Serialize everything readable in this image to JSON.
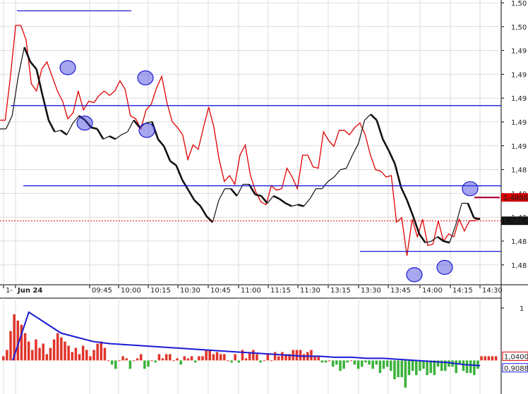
{
  "chart_data": [
    {
      "type": "line",
      "panel": "price",
      "x_ticks": [
        "1-",
        "Jun 24",
        "09:45",
        "10:00",
        "10:15",
        "10:30",
        "10:45",
        "11:00",
        "11:15",
        "11:30",
        "13:15",
        "13:30",
        "13:45",
        "14:00",
        "14:15",
        "14:30"
      ],
      "y_ticks": [
        "1,50",
        "1,50",
        "1,49",
        "1,49",
        "1,49",
        "1,49",
        "1,49",
        "1,48",
        "1,48",
        "1,48",
        "1,48",
        "1,48"
      ],
      "grid": true,
      "price_badges": [
        {
          "text": "1,4866",
          "color": "#d40000"
        },
        {
          "text": "1,486 5",
          "color": "#111111"
        }
      ],
      "series": [
        {
          "color": "#e00000",
          "values": [
            1.4935,
            1.4935,
            1.4965,
            1.5,
            1.5,
            1.499,
            1.496,
            1.4955,
            1.497,
            1.4975,
            1.4965,
            1.4955,
            1.4948,
            1.4936,
            1.494,
            1.4955,
            1.4942,
            1.4948,
            1.4947,
            1.4952,
            1.4955,
            1.4952,
            1.4955,
            1.4962,
            1.4956,
            1.4938,
            1.4936,
            1.4929,
            1.4942,
            1.4946,
            1.4957,
            1.4965,
            1.4947,
            1.4934,
            1.493,
            1.4925,
            1.4908,
            1.4918,
            1.4915,
            1.493,
            1.4944,
            1.493,
            1.4908,
            1.4893,
            1.4897,
            1.4891,
            1.4911,
            1.4918,
            1.4897,
            1.4886,
            1.4879,
            1.4877,
            1.489,
            1.4887,
            1.4888,
            1.4902,
            1.4896,
            1.4888,
            1.4911,
            1.4911,
            1.4903,
            1.4902,
            1.4927,
            1.4921,
            1.4917,
            1.4928,
            1.4928,
            1.4925,
            1.493,
            1.4933,
            1.4925,
            1.4911,
            1.4901,
            1.49,
            1.4896,
            1.4897,
            1.4865,
            1.4868,
            1.4842,
            1.4867,
            1.4855,
            1.4867,
            1.4849,
            1.485,
            1.4866,
            1.4852,
            1.4857,
            1.4855,
            1.4867,
            1.4859,
            1.4866,
            1.4866,
            1.4868
          ]
        },
        {
          "color": "#111111",
          "values": [
            1.4929,
            1.4929,
            1.4938,
            1.4965,
            1.4985,
            1.4975,
            1.497,
            1.4952,
            1.4935,
            1.4927,
            1.4928,
            1.4925,
            1.4933,
            1.4938,
            1.4935,
            1.493,
            1.4929,
            1.4922,
            1.4924,
            1.4922,
            1.4925,
            1.4927,
            1.4935,
            1.493,
            1.4933,
            1.4934,
            1.4922,
            1.4917,
            1.4907,
            1.4904,
            1.4894,
            1.4887,
            1.488,
            1.4876,
            1.4869,
            1.4865,
            1.488,
            1.4888,
            1.4888,
            1.4883,
            1.4891,
            1.4891,
            1.4884,
            1.4883,
            1.4878,
            1.4883,
            1.4881,
            1.4878,
            1.4876,
            1.4877,
            1.4876,
            1.4881,
            1.4888,
            1.4888,
            1.4893,
            1.4896,
            1.4901,
            1.4902,
            1.4911,
            1.4919,
            1.4935,
            1.4939,
            1.4935,
            1.4922,
            1.4914,
            1.4905,
            1.4889,
            1.488,
            1.4869,
            1.4857,
            1.4851,
            1.4852,
            1.4855,
            1.4852,
            1.4851,
            1.4863,
            1.4878,
            1.4878,
            1.4868,
            1.4867
          ]
        }
      ],
      "horizontal_lines": [
        1.501,
        1.4945,
        1.489,
        1.4845,
        1.4866
      ],
      "circled_points": [
        1.4971,
        1.4964,
        1.4933,
        1.4928,
        1.4888,
        1.4829,
        1.4834
      ]
    },
    {
      "type": "bar",
      "panel": "histogram",
      "y_ticks": [
        "1"
      ],
      "value_badges": [
        {
          "text": "1,0400",
          "color": "#e00000"
        },
        {
          "text": "0,9088",
          "color": "#1a1aff"
        }
      ],
      "baseline": 1.02,
      "ylim": [
        0.86,
        1.31
      ],
      "values": [
        1.04,
        1.07,
        1.16,
        1.24,
        1.21,
        1.19,
        1.15,
        1.11,
        1.07,
        1.12,
        1.08,
        1.1,
        1.05,
        1.08,
        1.12,
        1.15,
        1.13,
        1.11,
        1.09,
        1.06,
        1.08,
        1.05,
        1.09,
        1.07,
        1.04,
        1.07,
        1.1,
        1.11,
        1.08,
        1.02,
        1.0,
        0.98,
        1.02,
        1.04,
        1.03,
        0.98,
        1.02,
        1.03,
        1.05,
        0.98,
        0.99,
        1.02,
        1.01,
        1.05,
        1.03,
        1.05,
        1.05,
        1.02,
        1.03,
        1.0,
        1.04,
        1.03,
        1.04,
        1.01,
        1.04,
        1.04,
        1.07,
        1.07,
        1.05,
        1.06,
        1.05,
        1.05,
        1.02,
        1.01,
        1.05,
        1.01,
        1.07,
        1.03,
        1.06,
        1.07,
        1.05,
        1.01,
        1.02,
        1.05,
        1.02,
        1.06,
        1.04,
        1.06,
        1.05,
        1.05,
        1.07,
        1.07,
        1.07,
        1.05,
        1.06,
        1.07,
        1.04,
        1.04,
        1.01,
        1.01,
        1.02,
        0.99,
        1.0,
        0.97,
        0.98,
        1.01,
        1.02,
        1.0,
        0.98,
        0.99,
        1.01,
        1.0,
        0.98,
        1.0,
        0.96,
        0.98,
        0.99,
        0.97,
        0.93,
        0.94,
        0.94,
        0.89,
        0.95,
        0.97,
        0.95,
        0.97,
        0.98,
        0.95,
        0.96,
        0.95,
        0.99,
        0.97,
        0.97,
        0.99,
        0.99,
        0.96,
        1.0,
        0.97,
        0.96,
        0.96,
        0.95,
        0.98,
        1.04,
        1.04,
        1.04,
        1.04,
        1.04
      ],
      "signal": [
        1.02,
        1.25,
        1.2,
        1.15,
        1.13,
        1.11,
        1.1,
        1.095,
        1.09,
        1.085,
        1.08,
        1.075,
        1.07,
        1.065,
        1.06,
        1.055,
        1.05,
        1.045,
        1.04,
        1.04,
        1.035,
        1.035,
        1.03,
        1.03,
        1.025,
        1.02,
        1.015,
        1.01,
        1.0,
        0.995
      ]
    }
  ]
}
